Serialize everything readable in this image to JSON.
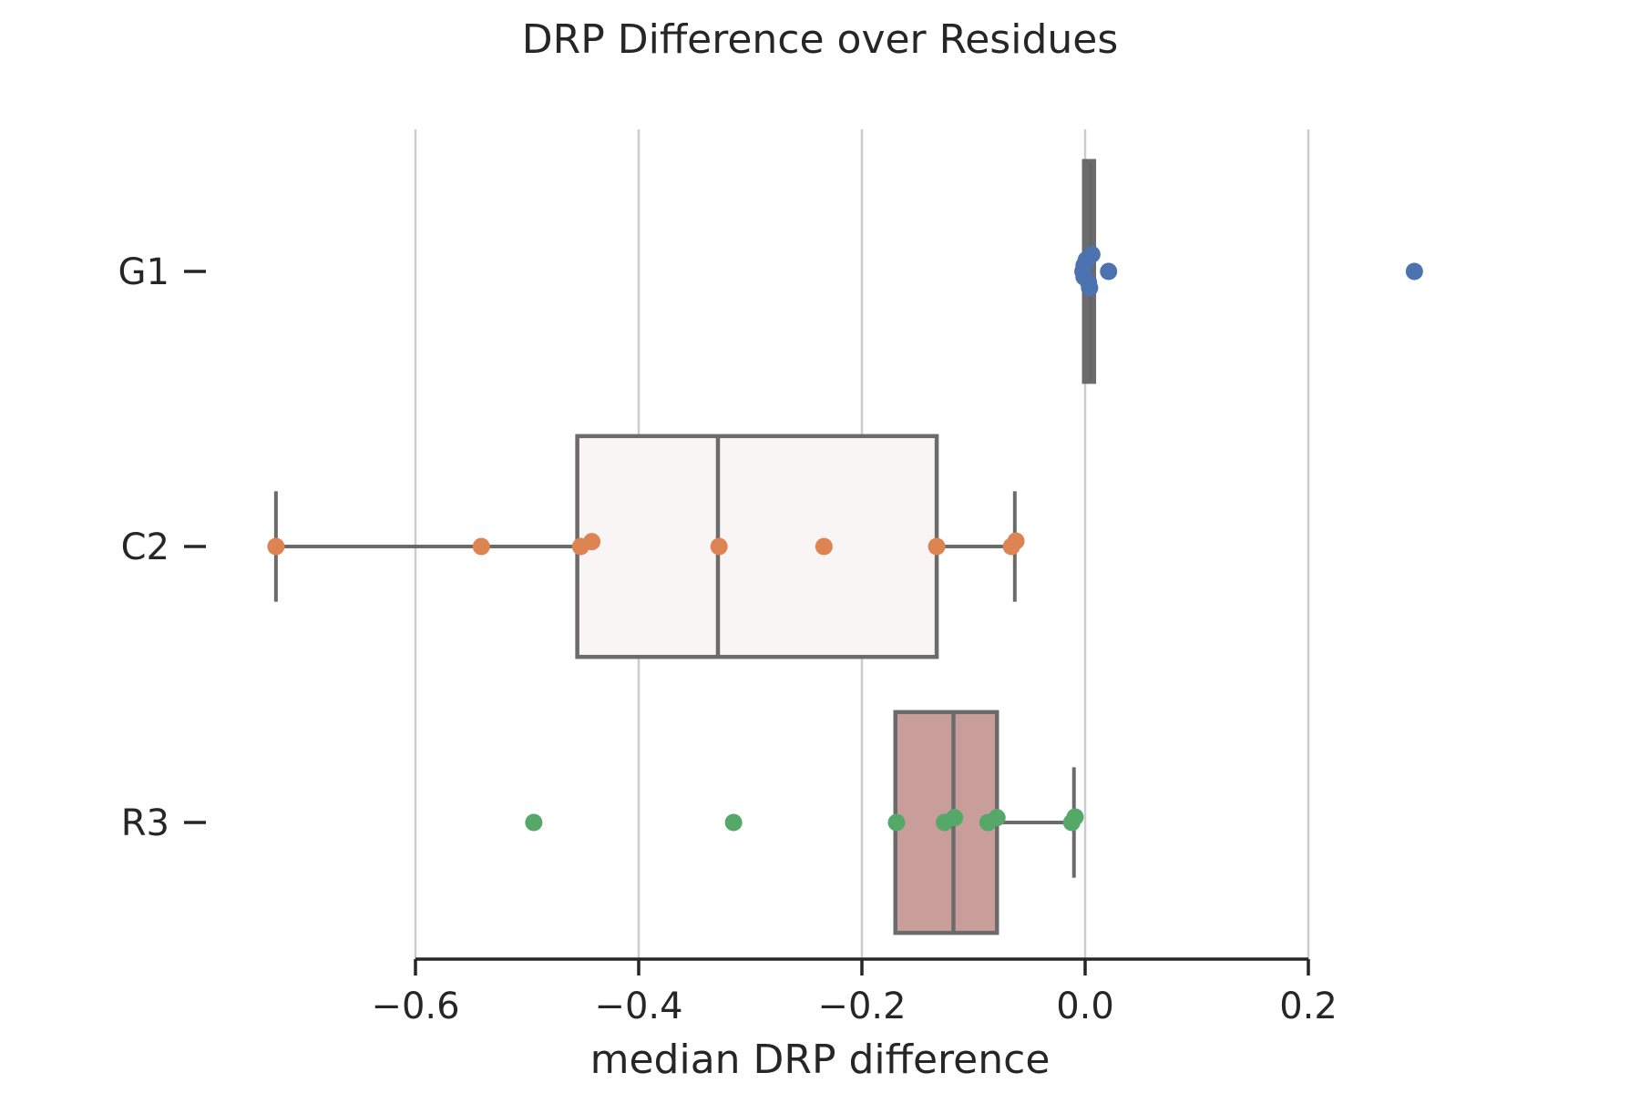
{
  "chart_data": {
    "type": "box",
    "title": "DRP Difference over Residues",
    "xlabel": "median DRP difference",
    "ylabel": "",
    "orientation": "horizontal",
    "xlim": [
      -0.76,
      0.42
    ],
    "xticks": [
      -0.6,
      -0.4,
      -0.2,
      0.0,
      0.2
    ],
    "xtick_labels": [
      "−0.6",
      "−0.4",
      "−0.2",
      "0.0",
      "0.2"
    ],
    "grid": "vertical",
    "categories": [
      "G1",
      "C2",
      "R3"
    ],
    "boxes": [
      {
        "name": "G1",
        "color": "#4c72b0",
        "box_fill": "#636363",
        "whisker_low": -0.001,
        "q1": -0.001,
        "median": 0.002,
        "q3": 0.008,
        "whisker_high": 0.008,
        "points": [
          {
            "x": 0.006,
            "y": -0.28
          },
          {
            "x": 0.001,
            "y": -0.19
          },
          {
            "x": -0.001,
            "y": -0.1
          },
          {
            "x": -0.002,
            "y": 0.0
          },
          {
            "x": 0.021,
            "y": 0.0
          },
          {
            "x": -0.001,
            "y": 0.09
          },
          {
            "x": 0.003,
            "y": 0.18
          },
          {
            "x": 0.004,
            "y": 0.27
          },
          {
            "x": 0.295,
            "y": 0.0
          }
        ]
      },
      {
        "name": "C2",
        "color": "#dd8452",
        "box_fill": "#f9f5f4",
        "whisker_low": -0.725,
        "q1": -0.455,
        "median": -0.329,
        "q3": -0.133,
        "whisker_high": -0.063,
        "points": [
          {
            "x": -0.725,
            "y": 0.0
          },
          {
            "x": -0.541,
            "y": 0.0
          },
          {
            "x": -0.452,
            "y": 0.0
          },
          {
            "x": -0.442,
            "y": -0.08
          },
          {
            "x": -0.328,
            "y": 0.0
          },
          {
            "x": -0.234,
            "y": 0.0
          },
          {
            "x": -0.133,
            "y": 0.0
          },
          {
            "x": -0.066,
            "y": 0.0
          },
          {
            "x": -0.062,
            "y": -0.09
          }
        ]
      },
      {
        "name": "R3",
        "color": "#55a868",
        "box_fill": "#c89d9a",
        "whisker_low": -0.17,
        "q1": -0.17,
        "median": -0.118,
        "q3": -0.079,
        "whisker_high": -0.01,
        "points": [
          {
            "x": -0.494,
            "y": 0.0
          },
          {
            "x": -0.315,
            "y": 0.0
          },
          {
            "x": -0.169,
            "y": 0.0
          },
          {
            "x": -0.126,
            "y": 0.0
          },
          {
            "x": -0.117,
            "y": -0.08
          },
          {
            "x": -0.087,
            "y": 0.0
          },
          {
            "x": -0.079,
            "y": -0.08
          },
          {
            "x": -0.012,
            "y": 0.0
          },
          {
            "x": -0.009,
            "y": -0.09
          }
        ]
      }
    ]
  }
}
